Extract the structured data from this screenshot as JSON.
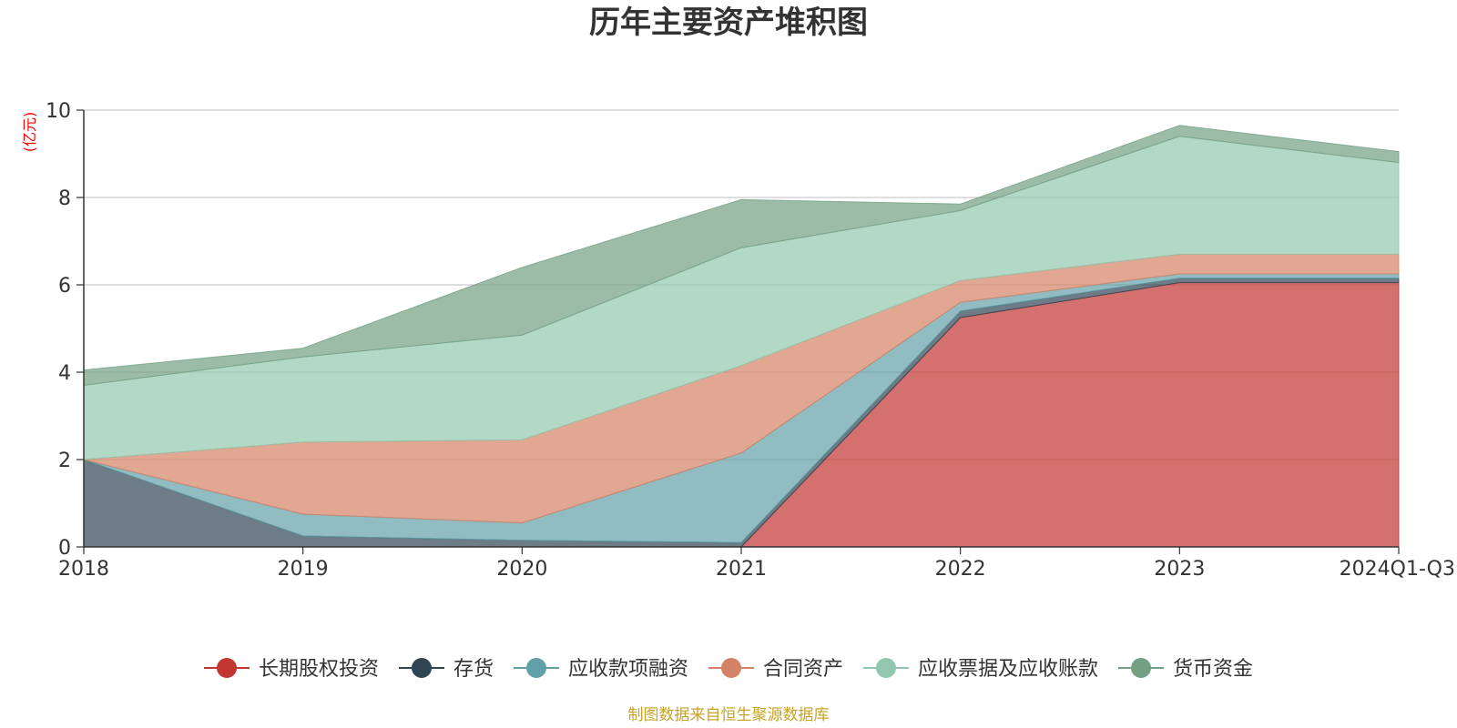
{
  "chart_data": {
    "type": "area",
    "stacked": true,
    "title": "历年主要资产堆积图",
    "unit_label": "(亿元)",
    "source_note": "制图数据来自恒生聚源数据库",
    "x": [
      "2018",
      "2019",
      "2020",
      "2021",
      "2022",
      "2023",
      "2024Q1-Q3"
    ],
    "ylim": [
      0,
      10
    ],
    "yticks": [
      0,
      2,
      4,
      6,
      8,
      10
    ],
    "grid": true,
    "legend_position": "bottom",
    "series": [
      {
        "name": "长期股权投资",
        "color": "#c23531",
        "values": [
          0,
          0,
          0,
          0,
          5.25,
          6.05,
          6.05
        ]
      },
      {
        "name": "存货",
        "color": "#2f4554",
        "values": [
          2.0,
          0.25,
          0.15,
          0.1,
          0.15,
          0.1,
          0.1
        ]
      },
      {
        "name": "应收款项融资",
        "color": "#61a0a8",
        "values": [
          0,
          0.5,
          0.4,
          2.05,
          0.2,
          0.1,
          0.1
        ]
      },
      {
        "name": "合同资产",
        "color": "#d48265",
        "values": [
          0,
          1.65,
          1.9,
          2.0,
          0.5,
          0.45,
          0.45
        ]
      },
      {
        "name": "应收票据及应收账款",
        "color": "#91c7ae",
        "values": [
          1.7,
          1.95,
          2.4,
          2.7,
          1.6,
          2.7,
          2.1
        ]
      },
      {
        "name": "货币资金",
        "color": "#749f83",
        "values": [
          0.35,
          0.2,
          1.55,
          1.1,
          0.15,
          0.25,
          0.25
        ]
      }
    ]
  }
}
